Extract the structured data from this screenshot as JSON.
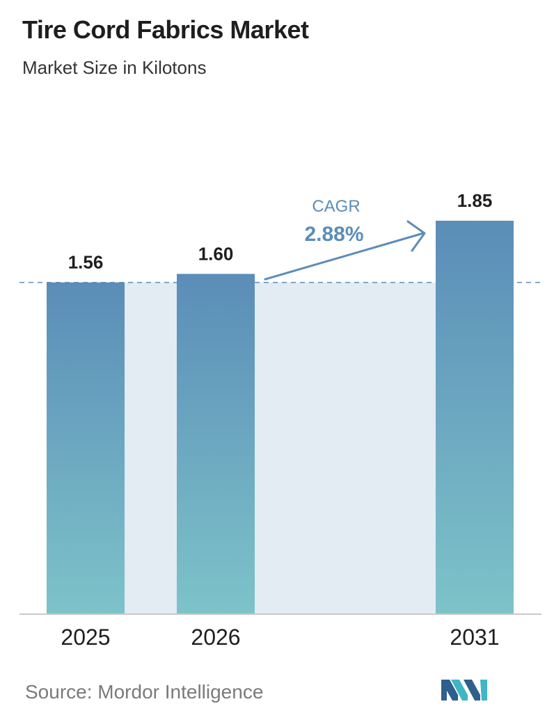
{
  "header": {
    "title": "Tire Cord Fabrics Market",
    "subtitle": "Market Size in Kilotons"
  },
  "chart_data": {
    "type": "bar",
    "title": "Tire Cord Fabrics Market",
    "subtitle": "Market Size in Kilotons",
    "categories": [
      "2025",
      "2026",
      "2031"
    ],
    "values": [
      1.56,
      1.6,
      1.85
    ],
    "value_labels": [
      "1.56",
      "1.60",
      "1.85"
    ],
    "cagr": {
      "label": "CAGR",
      "value": "2.88%"
    },
    "xlabel": "",
    "ylabel": "",
    "ylim": [
      0,
      1.85
    ],
    "grid": false,
    "legend": "none",
    "colors": {
      "bar_top": "#5b8db8",
      "bar_bottom": "#7dc3c9",
      "band": "#e3ebf3",
      "reference_line": "#5b8db8",
      "cagr_text": "#5b8db8",
      "axis": "#c9c9c9"
    }
  },
  "footer": {
    "source": "Source:  Mordor Intelligence",
    "logo_icon": "mordor-intelligence-logo-icon"
  }
}
